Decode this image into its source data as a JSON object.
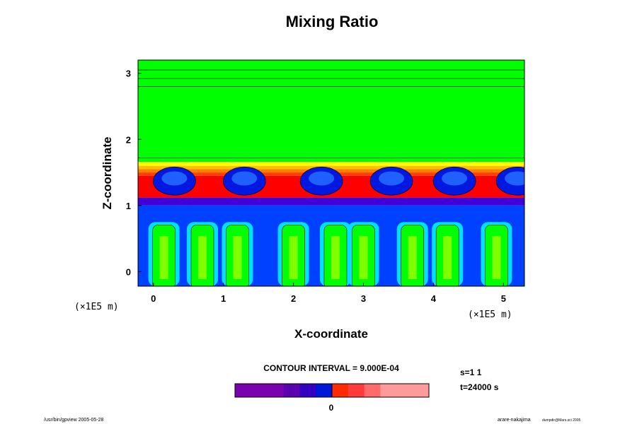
{
  "chart_data": {
    "type": "heatmap",
    "title": "Mixing Ratio",
    "xlabel": "X-coordinate",
    "ylabel": "Z-coordinate",
    "x_unit": "(×1E5 m)",
    "z_unit": "(×1E5 m)",
    "xlim": [
      -0.22,
      5.3
    ],
    "ylim": [
      -0.22,
      3.2
    ],
    "x_ticks": [
      "0",
      "1",
      "2",
      "3",
      "4",
      "5"
    ],
    "y_ticks": [
      "0",
      "1",
      "2",
      "3"
    ],
    "contour_interval_text": "CONTOUR INTERVAL = 9.000E-04",
    "colorbar": {
      "colors": [
        "#7a00b0",
        "#7a00b0",
        "#7a00b0",
        "#5a00b0",
        "#3600c0",
        "#0018d8",
        "#ff2a00",
        "#ff3a3a",
        "#ff6a6a",
        "#ff9a9a",
        "#ff9a9a",
        "#ff9a9a"
      ],
      "zero_label": "0",
      "zero_index": 6
    },
    "layers": [
      {
        "z": [
          1.66,
          3.2
        ],
        "fill": "#00ff00"
      },
      {
        "z": [
          1.6,
          1.66
        ],
        "fill": "#ffff00"
      },
      {
        "z": [
          1.55,
          1.6
        ],
        "fill": "#ffc000"
      },
      {
        "z": [
          1.5,
          1.55
        ],
        "fill": "#ff8000"
      },
      {
        "z": [
          1.45,
          1.5
        ],
        "fill": "#ff4000"
      },
      {
        "z": [
          1.12,
          1.45
        ],
        "fill": "#ff0000"
      },
      {
        "z": [
          1.0,
          1.12
        ],
        "fill": "#4000d8"
      },
      {
        "z": [
          -0.22,
          1.0
        ],
        "fill": "#0040ff"
      }
    ],
    "cells_x": [
      0.3,
      1.3,
      2.4,
      3.4,
      4.3,
      5.2
    ],
    "plumes_x": [
      0.15,
      0.7,
      1.2,
      2.0,
      2.6,
      3.0,
      3.7,
      4.2,
      4.9
    ],
    "series_note_cells_color": "#0018e0"
  },
  "status": {
    "s_label": "s=1 1",
    "t_label": "t=24000 s"
  },
  "footer": {
    "left": "/usr/bin/gpview 2005-05-28",
    "right": "arare-nakajima",
    "right_small": "dumpdir@Mars.sci 2005"
  }
}
